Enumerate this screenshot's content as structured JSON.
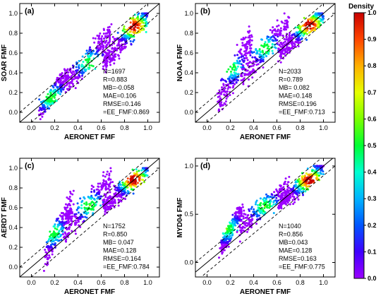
{
  "chart_data": {
    "type": "scatter",
    "kind": "density-scatter",
    "x_axis": {
      "label": "AERONET FMF",
      "range": [
        -0.1,
        1.1
      ],
      "ticks": [
        "0.0",
        "0.2",
        "0.4",
        "0.6",
        "0.8",
        "1.0"
      ]
    },
    "colorbar": {
      "title": "Density",
      "range": [
        0.0,
        1.0
      ],
      "ticks": [
        "0.0",
        "0.1",
        "0.2",
        "0.3",
        "0.4",
        "0.5",
        "0.6",
        "0.7",
        "0.8",
        "0.9",
        "1.0"
      ],
      "colors": [
        "#9b00ff",
        "#3f00ff",
        "#0055ff",
        "#00b3ff",
        "#00ffd0",
        "#00ff33",
        "#7bff00",
        "#e6ff00",
        "#ffb000",
        "#ff4500",
        "#c80000"
      ]
    },
    "reference_lines": {
      "one_to_one": "solid",
      "expected_error": "dashed",
      "ee_offsets": [
        0.1,
        -0.1
      ]
    },
    "panels": [
      {
        "label": "(a)",
        "ylabel": "SOAR FMF",
        "yrange": [
          -0.1,
          1.1
        ],
        "yticks": [
          "0.0",
          "0.2",
          "0.4",
          "0.6",
          "0.8",
          "1.0"
        ],
        "stats": [
          "N=1697",
          "R=0.883",
          "MB=-0.058",
          "MAE=0.106",
          "RMSE=0.146",
          "=EE_FMF:0.869"
        ],
        "clusters": [
          {
            "x": [
              0.08,
              0.32
            ],
            "y": [
              0.02,
              0.4
            ],
            "center": [
              0.17,
              0.15
            ]
          },
          {
            "x": [
              0.3,
              0.68
            ],
            "y": [
              0.25,
              0.8
            ],
            "center": [
              0.5,
              0.5
            ]
          },
          {
            "x": [
              0.62,
              1.0
            ],
            "y": [
              0.5,
              1.0
            ],
            "center": [
              0.88,
              0.87
            ]
          }
        ]
      },
      {
        "label": "(b)",
        "ylabel": "NOAA FMF",
        "yrange": [
          -0.1,
          1.1
        ],
        "yticks": [
          "0.0",
          "0.2",
          "0.4",
          "0.6",
          "0.8",
          "1.0"
        ],
        "stats": [
          "N=2033",
          "R=0.789",
          "MB= 0.082",
          "MAE=0.148",
          "RMSE=0.196",
          "=EE_FMF:0.713"
        ],
        "clusters": [
          {
            "x": [
              0.1,
              0.38
            ],
            "y": [
              0.1,
              0.75
            ],
            "center": [
              0.2,
              0.45
            ]
          },
          {
            "x": [
              0.3,
              0.7
            ],
            "y": [
              0.35,
              0.9
            ],
            "center": [
              0.5,
              0.65
            ]
          },
          {
            "x": [
              0.62,
              1.0
            ],
            "y": [
              0.6,
              1.0
            ],
            "center": [
              0.88,
              0.88
            ]
          }
        ]
      },
      {
        "label": "(c)",
        "ylabel": "AERDT FMF",
        "yrange": [
          -0.1,
          1.1
        ],
        "yticks": [
          "0.0",
          "0.2",
          "0.4",
          "0.6",
          "0.8",
          "1.0"
        ],
        "stats": [
          "N=1752",
          "R=0.850",
          "MB= 0.047",
          "MAE=0.128",
          "RMSE=0.164",
          "=EE_FMF:0.784"
        ],
        "clusters": [
          {
            "x": [
              0.12,
              0.35
            ],
            "y": [
              0.1,
              0.65
            ],
            "center": [
              0.18,
              0.35
            ]
          },
          {
            "x": [
              0.28,
              0.7
            ],
            "y": [
              0.35,
              0.9
            ],
            "center": [
              0.5,
              0.62
            ]
          },
          {
            "x": [
              0.62,
              1.0
            ],
            "y": [
              0.6,
              1.0
            ],
            "center": [
              0.88,
              0.88
            ]
          }
        ]
      },
      {
        "label": "(d)",
        "ylabel": "MYD04 FMF",
        "yrange": [
          -0.15,
          1.08
        ],
        "yticks": [
          "0.0",
          "0.5",
          "1.0"
        ],
        "stats": [
          "N=1040",
          "R=0.856",
          "MB=0.043",
          "MAE=0.128",
          "RMSE=0.163",
          "=EE_FMF:0.775"
        ],
        "clusters": [
          {
            "x": [
              0.12,
              0.3
            ],
            "y": [
              0.15,
              0.55
            ],
            "center": [
              0.17,
              0.35
            ]
          },
          {
            "x": [
              0.28,
              0.7
            ],
            "y": [
              0.35,
              0.8
            ],
            "center": [
              0.5,
              0.58
            ]
          },
          {
            "x": [
              0.62,
              1.0
            ],
            "y": [
              0.6,
              1.0
            ],
            "center": [
              0.88,
              0.85
            ]
          }
        ]
      }
    ]
  }
}
